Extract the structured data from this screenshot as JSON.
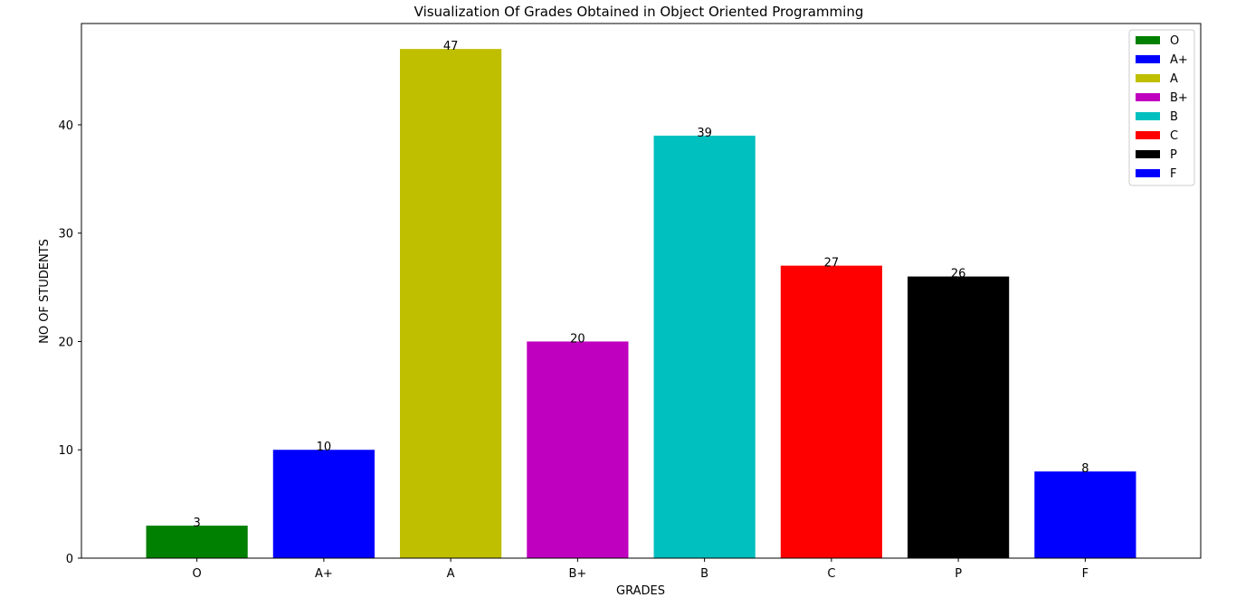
{
  "chart_data": {
    "type": "bar",
    "title": "Visualization Of Grades Obtained in Object Oriented Programming",
    "xlabel": "GRADES",
    "ylabel": "NO OF STUDENTS",
    "categories": [
      "O",
      "A+",
      "A",
      "B+",
      "B",
      "C",
      "P",
      "F"
    ],
    "values": [
      3,
      10,
      47,
      20,
      39,
      27,
      26,
      8
    ],
    "colors": [
      "#008000",
      "#0000ff",
      "#bfbf00",
      "#bf00bf",
      "#00bfbf",
      "#ff0000",
      "#000000",
      "#0000ff"
    ],
    "ylim": [
      0,
      49.35
    ],
    "yticks": [
      0,
      10,
      20,
      30,
      40
    ],
    "legend": {
      "placement": "top-right",
      "entries": [
        "O",
        "A+",
        "A",
        "B+",
        "B",
        "C",
        "P",
        "F"
      ]
    },
    "grid": false
  }
}
